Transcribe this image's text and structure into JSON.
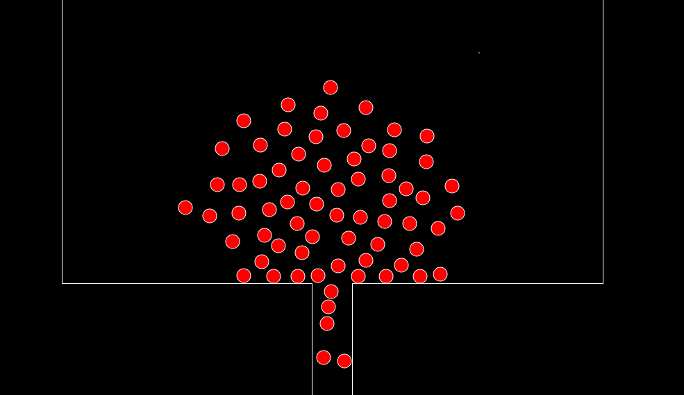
{
  "colors": {
    "background": "#000000",
    "wall": "#ffffff",
    "ball_fill": "#ff0000",
    "ball_outline": "#ffffff"
  },
  "scene": {
    "type": "ball-container-with-drain-pipe",
    "ball_count": 72
  }
}
